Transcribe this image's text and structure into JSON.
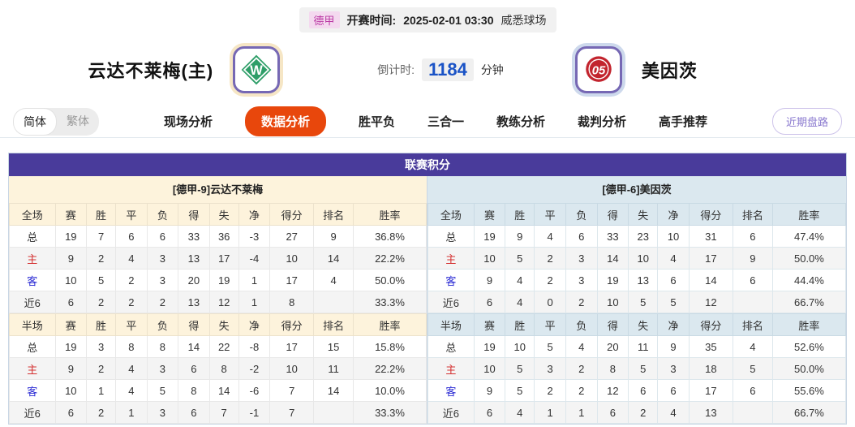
{
  "header": {
    "league": "德甲",
    "kickoff_label": "开赛时间:",
    "kickoff_time": "2025-02-01 03:30",
    "venue": "威悉球场",
    "home_team": "云达不莱梅(主)",
    "away_team": "美因茨",
    "countdown_label": "倒计时:",
    "countdown_value": "1184",
    "countdown_unit": "分钟"
  },
  "nav": {
    "lang_simplified": "简体",
    "lang_traditional": "繁体",
    "items": [
      {
        "label": "现场分析",
        "active": false
      },
      {
        "label": "数据分析",
        "active": true
      },
      {
        "label": "胜平负",
        "active": false
      },
      {
        "label": "三合一",
        "active": false
      },
      {
        "label": "教练分析",
        "active": false
      },
      {
        "label": "裁判分析",
        "active": false
      },
      {
        "label": "高手推荐",
        "active": false
      }
    ],
    "trend_button": "近期盘路"
  },
  "table": {
    "title": "联赛积分",
    "home": {
      "team_header": "[德甲-9]云达不莱梅",
      "full": {
        "columns": [
          "全场",
          "赛",
          "胜",
          "平",
          "负",
          "得",
          "失",
          "净",
          "得分",
          "排名",
          "胜率"
        ],
        "rows": [
          [
            "总",
            "19",
            "7",
            "6",
            "6",
            "33",
            "36",
            "-3",
            "27",
            "9",
            "36.8%"
          ],
          [
            "主",
            "9",
            "2",
            "4",
            "3",
            "13",
            "17",
            "-4",
            "10",
            "14",
            "22.2%"
          ],
          [
            "客",
            "10",
            "5",
            "2",
            "3",
            "20",
            "19",
            "1",
            "17",
            "4",
            "50.0%"
          ],
          [
            "近6",
            "6",
            "2",
            "2",
            "2",
            "13",
            "12",
            "1",
            "8",
            "",
            "33.3%"
          ]
        ]
      },
      "half": {
        "columns": [
          "半场",
          "赛",
          "胜",
          "平",
          "负",
          "得",
          "失",
          "净",
          "得分",
          "排名",
          "胜率"
        ],
        "rows": [
          [
            "总",
            "19",
            "3",
            "8",
            "8",
            "14",
            "22",
            "-8",
            "17",
            "15",
            "15.8%"
          ],
          [
            "主",
            "9",
            "2",
            "4",
            "3",
            "6",
            "8",
            "-2",
            "10",
            "11",
            "22.2%"
          ],
          [
            "客",
            "10",
            "1",
            "4",
            "5",
            "8",
            "14",
            "-6",
            "7",
            "14",
            "10.0%"
          ],
          [
            "近6",
            "6",
            "2",
            "1",
            "3",
            "6",
            "7",
            "-1",
            "7",
            "",
            "33.3%"
          ]
        ]
      }
    },
    "away": {
      "team_header": "[德甲-6]美因茨",
      "full": {
        "columns": [
          "全场",
          "赛",
          "胜",
          "平",
          "负",
          "得",
          "失",
          "净",
          "得分",
          "排名",
          "胜率"
        ],
        "rows": [
          [
            "总",
            "19",
            "9",
            "4",
            "6",
            "33",
            "23",
            "10",
            "31",
            "6",
            "47.4%"
          ],
          [
            "主",
            "10",
            "5",
            "2",
            "3",
            "14",
            "10",
            "4",
            "17",
            "9",
            "50.0%"
          ],
          [
            "客",
            "9",
            "4",
            "2",
            "3",
            "19",
            "13",
            "6",
            "14",
            "6",
            "44.4%"
          ],
          [
            "近6",
            "6",
            "4",
            "0",
            "2",
            "10",
            "5",
            "5",
            "12",
            "",
            "66.7%"
          ]
        ]
      },
      "half": {
        "columns": [
          "半场",
          "赛",
          "胜",
          "平",
          "负",
          "得",
          "失",
          "净",
          "得分",
          "排名",
          "胜率"
        ],
        "rows": [
          [
            "总",
            "19",
            "10",
            "5",
            "4",
            "20",
            "11",
            "9",
            "35",
            "4",
            "52.6%"
          ],
          [
            "主",
            "10",
            "5",
            "3",
            "2",
            "8",
            "5",
            "3",
            "18",
            "5",
            "50.0%"
          ],
          [
            "客",
            "9",
            "5",
            "2",
            "2",
            "12",
            "6",
            "6",
            "17",
            "6",
            "55.6%"
          ],
          [
            "近6",
            "6",
            "4",
            "1",
            "1",
            "6",
            "2",
            "4",
            "13",
            "",
            "66.7%"
          ]
        ]
      }
    }
  },
  "colors": {
    "table_title_purple": "#493b9b",
    "active_tab_orange": "#e8470c",
    "countdown_blue": "#1a53c6",
    "home_header_cream": "#fdf3dc",
    "away_header_blue": "#dbe8ef",
    "home_row_label_red": "#d43030",
    "away_row_label_blue": "#2b2bd4",
    "league_tag_pink": "#bb3ba5",
    "logo_border_purple": "#7668b4",
    "werder_green": "#2e9e68",
    "mainz_red": "#c2242e"
  }
}
